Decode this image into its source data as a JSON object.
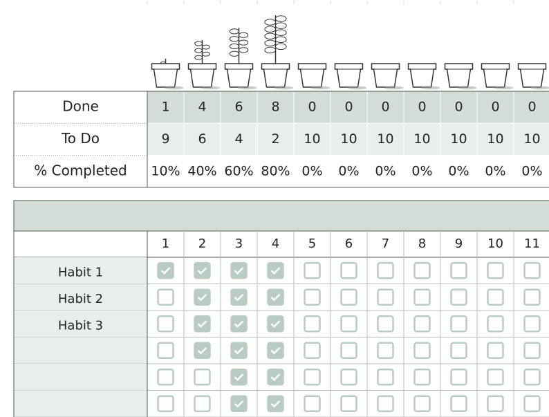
{
  "summary": {
    "rows": [
      {
        "label": "Done",
        "values": [
          1,
          4,
          6,
          8,
          0,
          0,
          0,
          0,
          0,
          0,
          0
        ]
      },
      {
        "label": "To Do",
        "values": [
          9,
          6,
          4,
          2,
          10,
          10,
          10,
          10,
          10,
          10,
          10
        ]
      },
      {
        "label": "% Completed",
        "values": [
          "10%",
          "40%",
          "60%",
          "80%",
          "0%",
          "0%",
          "0%",
          "0%",
          "0%",
          "0%",
          "0%"
        ]
      }
    ]
  },
  "tracker": {
    "days": [
      1,
      2,
      3,
      4,
      5,
      6,
      7,
      8,
      9,
      10,
      11
    ],
    "habits": [
      {
        "label": "Habit 1",
        "checks": [
          true,
          true,
          true,
          true,
          false,
          false,
          false,
          false,
          false,
          false,
          false
        ]
      },
      {
        "label": "Habit 2",
        "checks": [
          false,
          true,
          true,
          true,
          false,
          false,
          false,
          false,
          false,
          false,
          false
        ]
      },
      {
        "label": "Habit 3",
        "checks": [
          false,
          true,
          true,
          true,
          false,
          false,
          false,
          false,
          false,
          false,
          false
        ]
      },
      {
        "label": null,
        "checks": [
          false,
          true,
          true,
          true,
          false,
          false,
          false,
          false,
          false,
          false,
          false
        ]
      },
      {
        "label": null,
        "checks": [
          false,
          false,
          true,
          true,
          false,
          false,
          false,
          false,
          false,
          false,
          false
        ]
      },
      {
        "label": null,
        "checks": [
          false,
          false,
          true,
          true,
          false,
          false,
          false,
          false,
          false,
          false,
          false
        ]
      }
    ]
  }
}
